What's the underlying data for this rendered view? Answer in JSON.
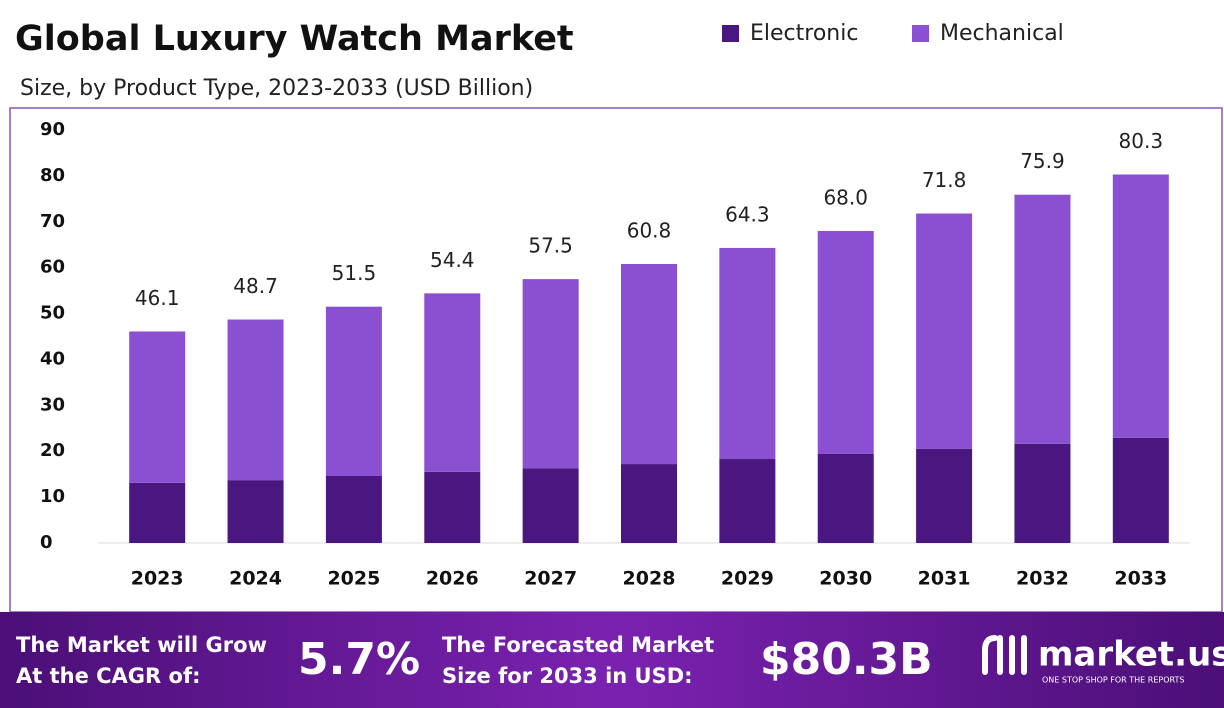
{
  "chart_data": {
    "type": "stacked_bar",
    "title": "Global Luxury Watch Market",
    "subtitle": "Size, by Product Type, 2023-2033 (USD Billion)",
    "categories": [
      "2023",
      "2024",
      "2025",
      "2026",
      "2027",
      "2028",
      "2029",
      "2030",
      "2031",
      "2032",
      "2033"
    ],
    "series": [
      {
        "name": "Electronic",
        "color": "#4a167f",
        "values": [
          13.1,
          13.7,
          14.6,
          15.5,
          16.3,
          17.2,
          18.3,
          19.4,
          20.5,
          21.6,
          22.9
        ]
      },
      {
        "name": "Mechanical",
        "color": "#8b4fd1",
        "values": [
          33.0,
          35.0,
          36.9,
          38.9,
          41.2,
          43.6,
          46.0,
          48.6,
          51.3,
          54.3,
          57.4
        ]
      }
    ],
    "totals": [
      "46.1",
      "48.7",
      "51.5",
      "54.4",
      "57.5",
      "60.8",
      "64.3",
      "68.0",
      "71.8",
      "75.9",
      "80.3"
    ],
    "ylim": [
      0,
      90
    ],
    "yticks": [
      0,
      10,
      20,
      30,
      40,
      50,
      60,
      70,
      80,
      90
    ],
    "grid": false
  },
  "banner": {
    "cagr_text": [
      "The Market will Grow",
      "At the CAGR of:"
    ],
    "cagr": "5.7%",
    "forecast_text": [
      "The Forecasted Market",
      "Size for 2033 in USD:"
    ],
    "forecast": "$80.3B",
    "logo": "market.us",
    "tagline": "ONE STOP SHOP FOR THE REPORTS"
  }
}
